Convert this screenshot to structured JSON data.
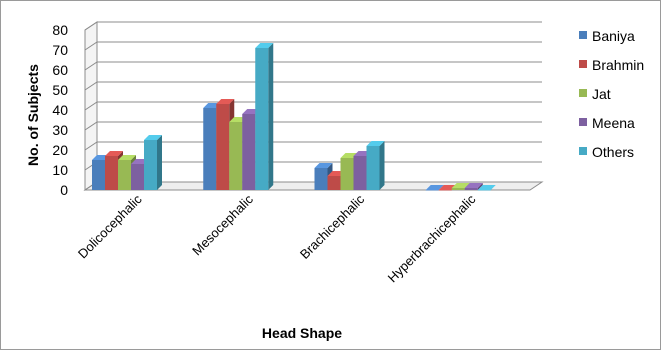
{
  "chart_data": {
    "type": "bar",
    "categories": [
      "Dolicocephalic",
      "Mesocephalic",
      "Brachicephalic",
      "Hyperbrachicephalic"
    ],
    "series": [
      {
        "name": "Baniya",
        "values": [
          15,
          41,
          11,
          0
        ],
        "color": "#4a7ebb"
      },
      {
        "name": "Brahmin",
        "values": [
          17,
          43,
          7,
          0
        ],
        "color": "#be4b48"
      },
      {
        "name": "Jat",
        "values": [
          15,
          34,
          16,
          1
        ],
        "color": "#98b954"
      },
      {
        "name": "Meena",
        "values": [
          13,
          38,
          17,
          1
        ],
        "color": "#7d60a0"
      },
      {
        "name": "Others",
        "values": [
          25,
          71,
          22,
          0
        ],
        "color": "#46aac5"
      }
    ],
    "xlabel": "Head Shape",
    "ylabel": "No. of Subjects",
    "ylim": [
      0,
      80
    ],
    "yticks": [
      "0",
      "10",
      "20",
      "30",
      "40",
      "50",
      "60",
      "70",
      "80"
    ],
    "grid": true,
    "legend": "right"
  }
}
